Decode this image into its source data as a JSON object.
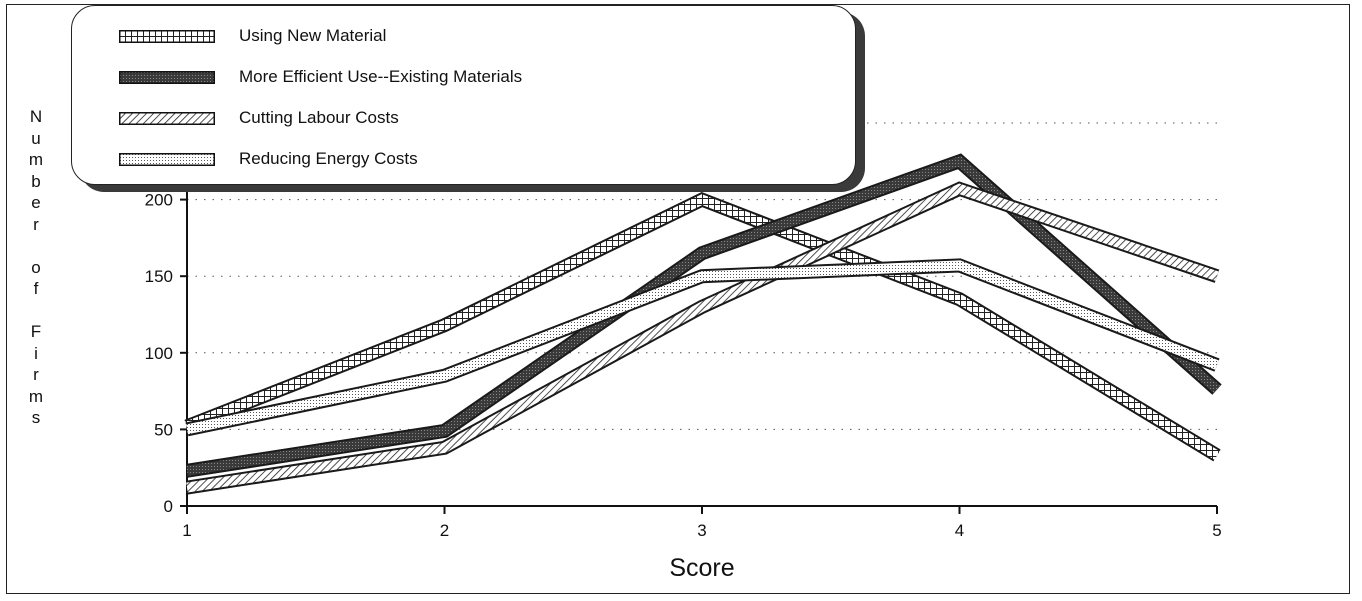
{
  "chart_data": {
    "type": "line",
    "title": "",
    "xlabel": "Score",
    "ylabel": "Number of Firms",
    "x": [
      1,
      2,
      3,
      4,
      5
    ],
    "xticks": [
      "1",
      "2",
      "3",
      "4",
      "5"
    ],
    "yticks": [
      "0",
      "50",
      "100",
      "150",
      "200"
    ],
    "ylim": [
      0,
      250
    ],
    "grid": "horizontal dotted",
    "legend_position": "top-left",
    "series": [
      {
        "name": "Using New Material",
        "values": [
          52,
          118,
          200,
          135,
          33
        ],
        "pattern": "grid",
        "color": "#555555"
      },
      {
        "name": "More Efficient Use--Existing Materials",
        "values": [
          23,
          49,
          165,
          225,
          76
        ],
        "pattern": "dark-dotted",
        "color": "#333333"
      },
      {
        "name": "Cutting Labour Costs",
        "values": [
          12,
          38,
          130,
          207,
          150
        ],
        "pattern": "diagonal-hatch",
        "color": "#444444"
      },
      {
        "name": "Reducing Energy Costs",
        "values": [
          50,
          85,
          150,
          157,
          92
        ],
        "pattern": "light-dotted",
        "color": "#777777"
      }
    ]
  }
}
